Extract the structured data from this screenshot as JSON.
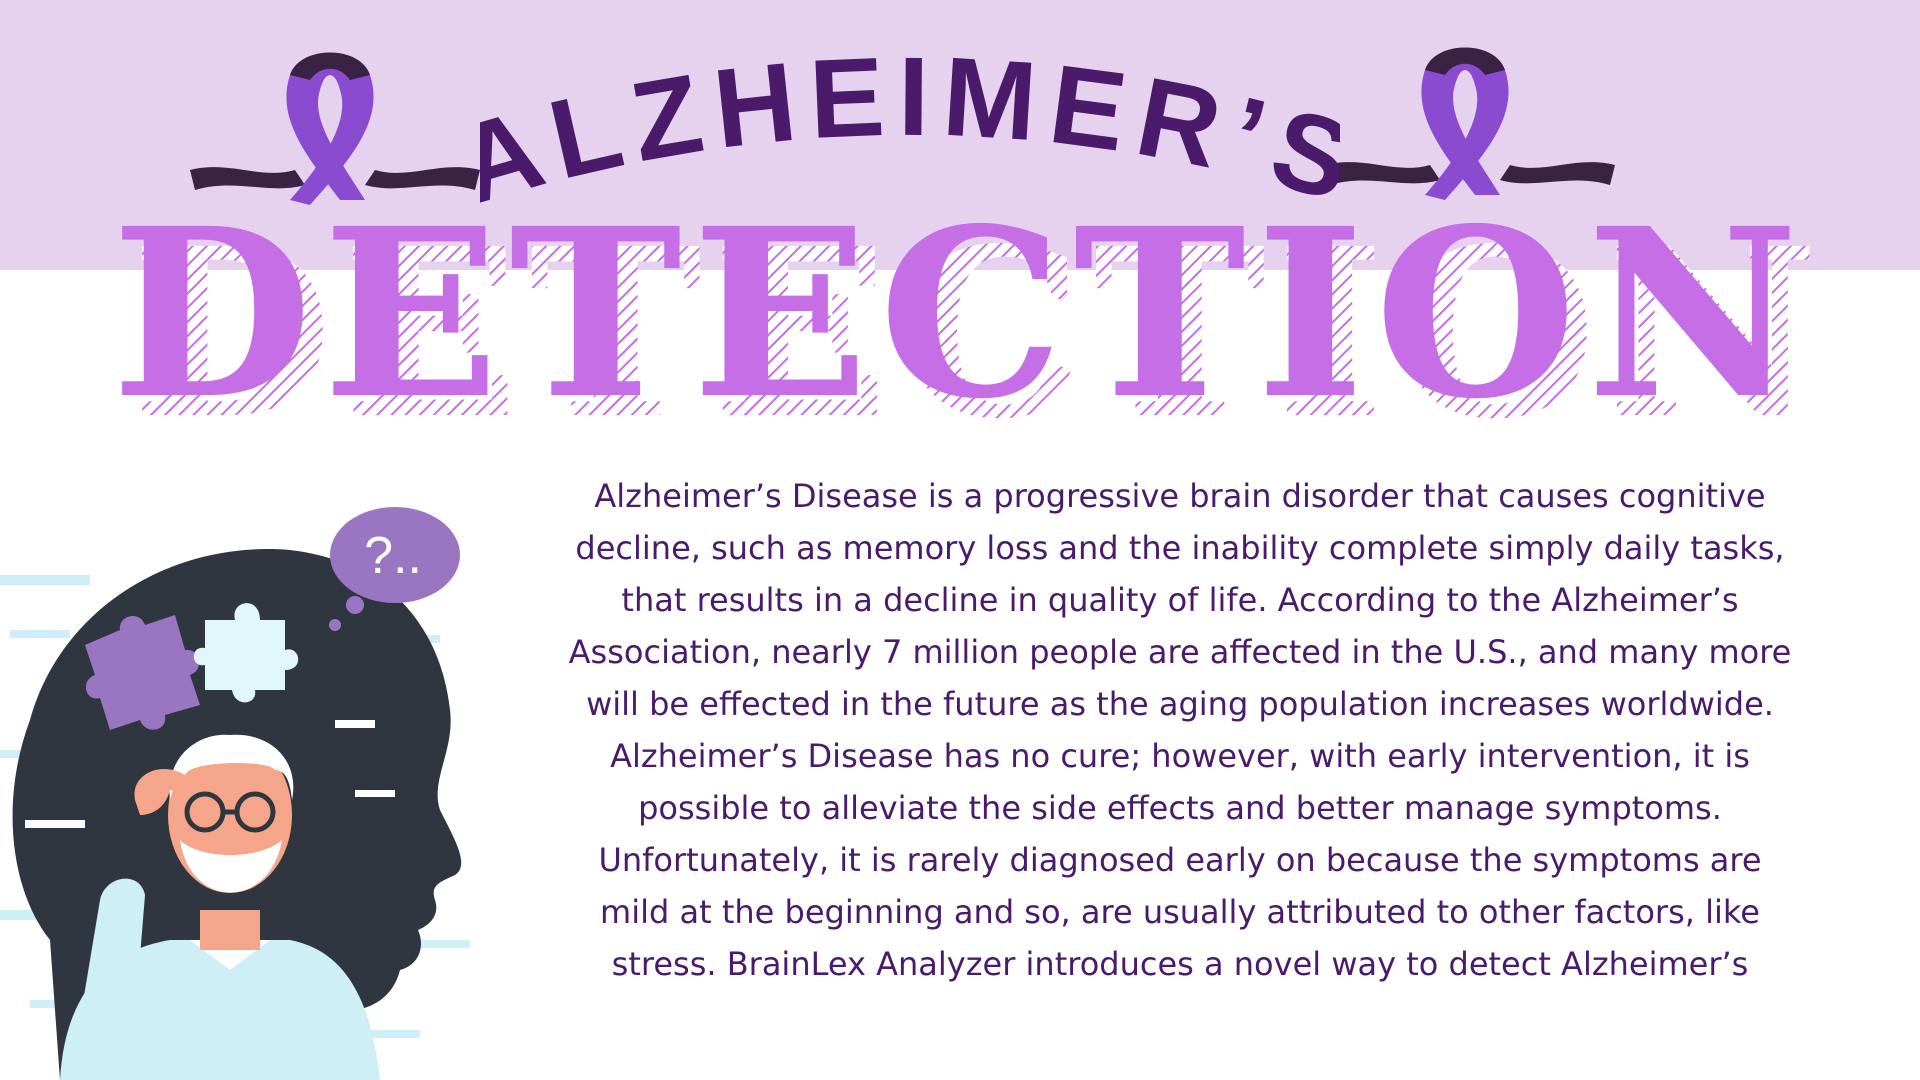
{
  "header": {
    "title_line1": "ALZHEIMER’S",
    "title_line2": "DETECTION"
  },
  "body": {
    "paragraph": "Alzheimer’s Disease is a progressive brain disorder that causes cognitive\ndecline, such as memory loss and the inability complete simply daily tasks,\nthat results in a decline in quality of life. According to the Alzheimer’s\nAssociation, nearly 7 million people are affected in the U.S., and many more\nwill be effected in the future as the aging population increases worldwide.\nAlzheimer’s Disease has no cure; however, with early intervention, it is\npossible to alleviate the side effects and better manage symptoms.\nUnfortunately, it is rarely diagnosed early on because the symptoms are\nmild at the beginning and so, are usually attributed to other factors, like\nstress. BrainLex Analyzer introduces a novel way to detect Alzheimer’s"
  },
  "illustration": {
    "thought_text": "?..",
    "icons": [
      "awareness-ribbon-icon",
      "head-silhouette",
      "puzzle-piece-icon",
      "thought-bubble-icon",
      "elderly-man-figure"
    ]
  },
  "colors": {
    "band": "#e6d2ee",
    "title_dark": "#4a1a6b",
    "title_bright": "#c56ee6",
    "ribbon_purple": "#8a4bd0",
    "ribbon_dark": "#3a2244",
    "text": "#4a1a6b",
    "head": "#2f3640",
    "light_blue": "#cdeff5"
  }
}
